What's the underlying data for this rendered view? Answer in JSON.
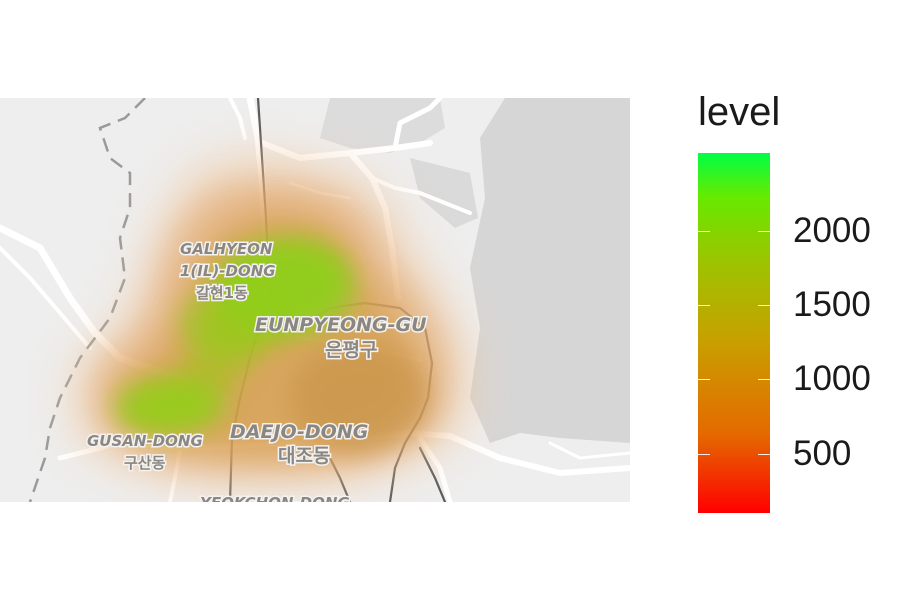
{
  "legend": {
    "title": "level",
    "ticks": [
      {
        "value": 500,
        "label": "500",
        "frac": 0.165
      },
      {
        "value": 1000,
        "label": "1000",
        "frac": 0.372
      },
      {
        "value": 1500,
        "label": "1500",
        "frac": 0.578
      },
      {
        "value": 2000,
        "label": "2000",
        "frac": 0.783
      }
    ],
    "colors": {
      "low": "#ff0000",
      "mid": "#c8a000",
      "high": "#00ff44"
    }
  },
  "map": {
    "labels": {
      "galhyeon_en_1": "GALHYEON",
      "galhyeon_en_2": "1(IL)-DONG",
      "galhyeon_ko": "갈현1동",
      "eunpyeong_en": "EUNPYEONG-GU",
      "eunpyeong_ko": "은평구",
      "gusan_en": "GUSAN-DONG",
      "gusan_ko": "구산동",
      "daejo_en": "DAEJO-DONG",
      "daejo_ko": "대조동",
      "yeokchon_en": "YEOKCHON-DONG"
    },
    "colors": {
      "base": "#eeeeee",
      "mountain": "#d6d6d6",
      "road": "#ffffff",
      "rail": "#555555"
    }
  }
}
